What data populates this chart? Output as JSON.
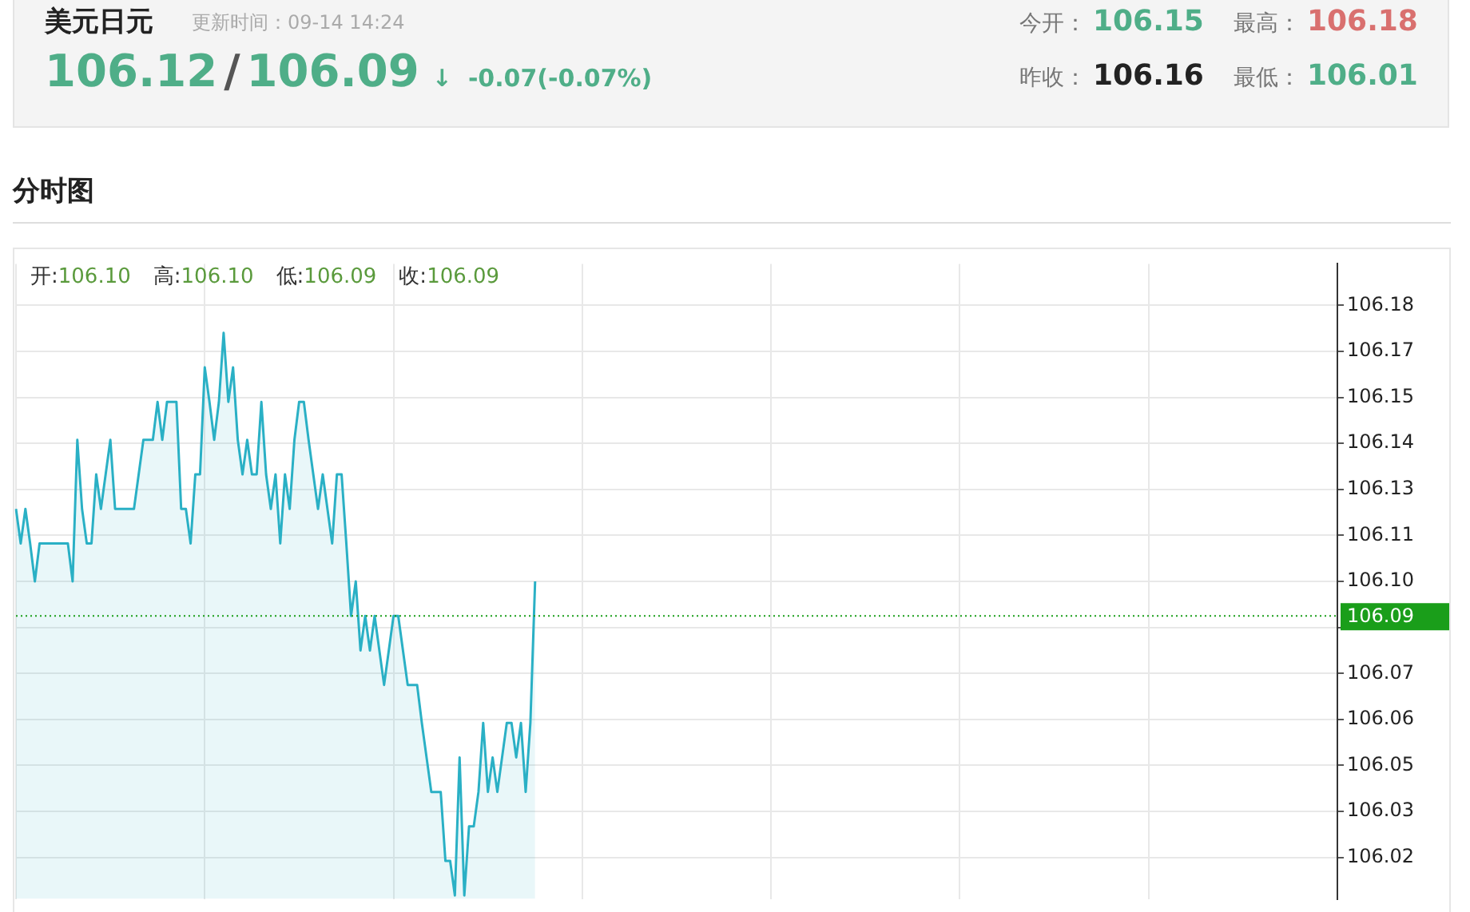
{
  "chart_data": {
    "type": "area",
    "title": "美元日元",
    "subtitle": "更新时间：09-14 14:24",
    "annotations": [
      "106.12",
      "/",
      "106.09",
      "↓",
      "-0.07(-0.07%)",
      "今开：",
      "106.15",
      "最高：",
      "106.18",
      "昨收：",
      "106.16",
      "最低：",
      "106.01",
      "分时图",
      "开:",
      "106.10",
      "高:",
      "106.10",
      "低:",
      "106.09",
      "收:",
      "106.09"
    ],
    "categories": [
      null,
      null,
      null,
      null,
      null,
      null,
      null,
      null,
      null,
      null,
      null,
      null,
      null,
      null,
      null,
      null,
      null,
      null,
      null,
      null,
      null,
      null,
      null,
      null,
      null,
      null,
      null,
      null,
      null,
      null,
      null,
      null,
      null,
      null,
      null,
      null,
      null,
      null,
      null,
      null,
      null,
      null,
      null,
      null,
      null,
      null,
      null,
      null,
      null,
      null,
      null,
      null,
      null,
      null,
      null,
      null,
      null,
      null,
      null,
      null,
      null,
      null,
      null,
      null,
      null,
      null,
      null,
      null,
      null,
      null,
      null,
      null,
      null,
      null,
      null,
      null,
      null,
      null,
      null,
      null,
      null,
      null,
      null,
      null,
      null,
      null,
      null,
      null,
      null,
      null,
      null,
      null,
      null,
      null,
      null,
      null,
      null,
      null,
      null,
      null,
      null,
      null,
      null,
      null,
      null,
      null,
      null,
      null,
      null,
      null,
      null,
      null,
      null,
      null,
      null,
      null,
      null,
      null,
      null,
      null,
      null,
      null,
      null,
      null,
      null,
      null,
      null,
      null,
      null,
      null,
      null,
      null,
      null,
      null,
      null,
      null,
      null,
      null,
      null,
      null,
      null,
      null,
      null,
      null,
      null,
      null,
      null,
      null,
      null,
      null,
      null,
      null,
      null,
      null,
      null,
      null,
      null,
      null,
      null,
      null,
      null,
      null,
      null,
      null,
      null,
      null,
      null,
      null,
      null,
      null,
      null,
      null,
      null,
      null,
      null,
      null,
      null,
      null,
      null,
      null,
      null,
      null,
      null,
      null,
      null,
      null,
      null,
      null,
      null,
      null,
      null,
      null,
      null,
      null,
      null,
      null,
      null,
      null,
      null,
      null,
      null,
      null,
      null,
      null,
      null,
      null,
      null,
      null,
      null,
      null,
      null,
      null,
      null,
      null,
      null,
      null,
      null,
      null,
      null,
      null,
      null,
      null,
      null,
      null,
      null,
      null,
      null,
      null,
      null,
      null,
      null,
      null,
      null,
      null,
      null,
      null,
      null,
      null,
      null,
      null,
      null,
      null,
      null,
      null,
      null,
      null,
      null,
      null,
      null,
      null,
      null,
      null,
      null,
      null,
      null,
      null,
      null,
      null,
      null,
      null,
      null,
      null,
      null,
      null,
      null,
      null,
      null,
      null,
      null,
      null,
      null,
      null,
      null,
      null,
      null,
      null,
      null,
      null,
      null,
      null,
      null
    ],
    "series": [
      {
        "color": "#2ab0c5",
        "values": [
          106.121,
          106.111,
          106.121,
          106.111,
          106.1,
          106.111,
          106.111,
          106.111,
          106.111,
          106.111,
          106.111,
          106.111,
          106.1,
          106.141,
          106.121,
          106.111,
          106.111,
          106.131,
          106.121,
          106.131,
          106.141,
          106.121,
          106.121,
          106.121,
          106.121,
          106.121,
          106.131,
          106.141,
          106.141,
          106.141,
          106.152,
          106.141,
          106.152,
          106.152,
          106.152,
          106.121,
          106.121,
          106.111,
          106.131,
          106.131,
          106.162,
          106.152,
          106.141,
          106.152,
          106.172,
          106.152,
          106.162,
          106.141,
          106.131,
          106.141,
          106.131,
          106.131,
          106.152,
          106.131,
          106.121,
          106.131,
          106.111,
          106.131,
          106.121,
          106.141,
          106.152,
          106.152,
          106.141,
          106.131,
          106.121,
          106.131,
          106.121,
          106.111,
          106.131,
          106.131,
          106.111,
          106.09,
          106.1,
          106.08,
          106.09,
          106.08,
          106.09,
          106.08,
          106.07,
          106.08,
          106.09,
          106.09,
          106.08,
          106.07,
          106.07,
          106.07,
          106.059,
          106.049,
          106.039,
          106.039,
          106.039,
          106.019,
          106.019,
          106.009,
          106.049,
          106.009,
          106.029,
          106.029,
          106.039,
          106.059,
          106.039,
          106.049,
          106.039,
          106.049,
          106.059,
          106.059,
          106.049,
          106.059,
          106.039,
          106.059,
          106.1,
          null,
          null,
          null,
          null,
          null,
          null,
          null,
          null,
          null,
          null,
          null,
          null,
          null,
          null,
          null,
          null,
          null,
          null,
          null,
          null,
          null,
          null,
          null,
          null,
          null,
          null,
          null,
          null,
          null,
          null,
          null,
          null,
          null,
          null,
          null,
          null,
          null,
          null,
          null,
          null,
          null,
          null,
          null,
          null,
          null,
          null,
          null,
          null,
          null,
          null,
          null,
          null,
          null,
          null,
          null,
          null,
          null,
          null,
          null,
          null,
          null,
          null,
          null,
          null,
          null,
          null,
          null,
          null,
          null,
          null,
          null,
          null,
          null,
          null,
          null,
          null,
          null,
          null,
          null,
          null,
          null,
          null,
          null,
          null,
          null,
          null,
          null,
          null,
          null,
          null,
          null,
          null,
          null,
          null,
          null,
          null,
          null,
          null,
          null,
          null,
          null,
          null,
          null,
          null,
          null,
          null,
          null,
          null,
          null,
          null,
          null,
          null,
          null,
          null,
          null,
          null,
          null,
          null,
          null,
          null,
          null,
          null,
          null,
          null,
          null,
          null,
          null,
          null,
          null,
          null,
          null,
          null,
          null,
          null,
          null,
          null,
          null,
          null,
          null,
          null,
          null,
          null,
          null,
          null,
          null,
          null,
          null,
          null,
          null,
          null,
          null,
          null,
          null,
          null,
          null,
          null,
          null,
          null,
          null,
          null,
          null,
          null,
          null,
          null,
          null,
          null,
          null,
          null,
          null,
          null
        ]
      }
    ],
    "ylim": [
      106.008,
      106.192
    ],
    "yticks": [
      {
        "value": 106.18,
        "label": "106.18"
      },
      {
        "value": 106.16667,
        "label": "106.17"
      },
      {
        "value": 106.15333,
        "label": "106.15"
      },
      {
        "value": 106.14,
        "label": "106.14"
      },
      {
        "value": 106.12667,
        "label": "106.13"
      },
      {
        "value": 106.11333,
        "label": "106.11"
      },
      {
        "value": 106.1,
        "label": "106.10"
      },
      {
        "value": 106.08667,
        "label": null
      },
      {
        "value": 106.07333,
        "label": "106.07"
      },
      {
        "value": 106.06,
        "label": "106.06"
      },
      {
        "value": 106.04667,
        "label": "106.05"
      },
      {
        "value": 106.03333,
        "label": "106.03"
      },
      {
        "value": 106.02,
        "label": "106.02"
      }
    ],
    "ref_lines": [
      {
        "axis": "y",
        "value": 106.09,
        "label": "106.09",
        "color": "#1a9e1a",
        "line_style": "dotted"
      }
    ],
    "grid": true,
    "legend": false,
    "tick_labels": "y",
    "marker": "none",
    "line_style": "solid"
  }
}
